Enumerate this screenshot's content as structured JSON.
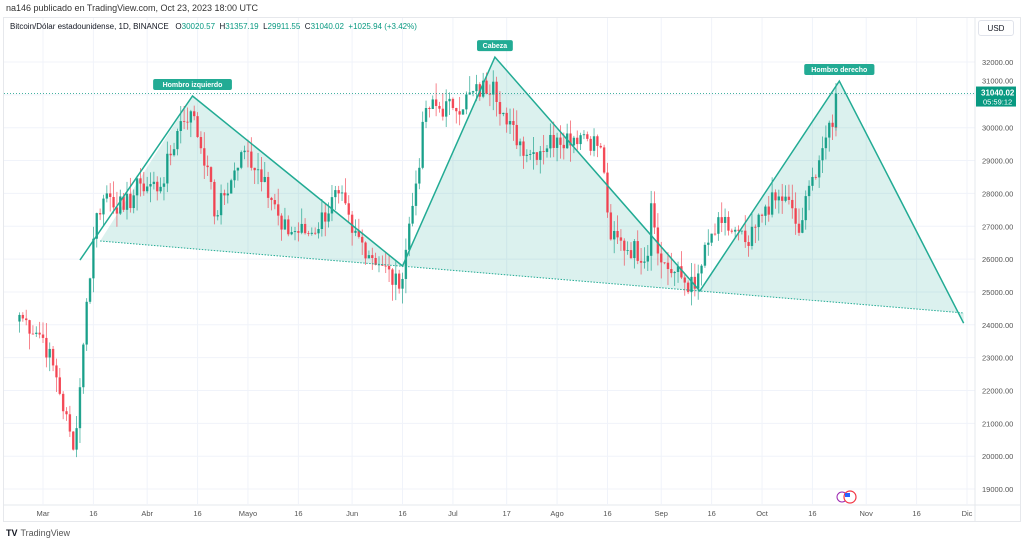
{
  "header": {
    "published": "na146 publicado en TradingView.com, Oct 23, 2023 18:00 UTC",
    "symbol": "Bitcoin/Dólar estadounidense, 1D, BINANCE",
    "open_label": "O",
    "open": "30020.57",
    "high_label": "H",
    "high": "31357.19",
    "low_label": "L",
    "low": "29911.55",
    "close_label": "C",
    "close": "31040.02",
    "change": "+1025.94 (+3.42%)"
  },
  "price_axis": {
    "currency": "USD",
    "last_price": "31040.02",
    "countdown": "05:59:12"
  },
  "footer": {
    "brand": "TradingView",
    "logo_icon": "tradingview-logo-icon"
  },
  "colors": {
    "up": "#089981",
    "down": "#f23645",
    "pattern": "#22ab94",
    "fill": "#22ab94"
  },
  "chart_data": {
    "type": "candlestick",
    "title": "Bitcoin/Dólar estadounidense, 1D, BINANCE",
    "ylim": [
      18600,
      33000
    ],
    "y_ticks": [
      19000,
      20000,
      21000,
      22000,
      23000,
      24000,
      25000,
      26000,
      27000,
      28000,
      29000,
      30000,
      31000,
      32000
    ],
    "x_ticks": [
      {
        "label": "Mar",
        "day": 0
      },
      {
        "label": "16",
        "day": 15
      },
      {
        "label": "Abr",
        "day": 31
      },
      {
        "label": "16",
        "day": 46
      },
      {
        "label": "Mayo",
        "day": 61
      },
      {
        "label": "16",
        "day": 76
      },
      {
        "label": "Jun",
        "day": 92
      },
      {
        "label": "16",
        "day": 107
      },
      {
        "label": "Jul",
        "day": 122
      },
      {
        "label": "17",
        "day": 138
      },
      {
        "label": "Ago",
        "day": 153
      },
      {
        "label": "16",
        "day": 168
      },
      {
        "label": "Sep",
        "day": 184
      },
      {
        "label": "16",
        "day": 199
      },
      {
        "label": "Oct",
        "day": 214
      },
      {
        "label": "16",
        "day": 229
      },
      {
        "label": "Nov",
        "day": 245
      },
      {
        "label": "16",
        "day": 260
      },
      {
        "label": "Dic",
        "day": 275
      }
    ],
    "x_unit": "days since 2023-03-01",
    "close_anchors": [
      [
        -7,
        24300
      ],
      [
        0,
        23600
      ],
      [
        4,
        22400
      ],
      [
        9,
        20200
      ],
      [
        11,
        22100
      ],
      [
        13,
        24700
      ],
      [
        16,
        27400
      ],
      [
        19,
        28000
      ],
      [
        24,
        27500
      ],
      [
        29,
        28300
      ],
      [
        35,
        28200
      ],
      [
        41,
        30200
      ],
      [
        44,
        30500
      ],
      [
        49,
        28800
      ],
      [
        51,
        27300
      ],
      [
        56,
        28400
      ],
      [
        60,
        29300
      ],
      [
        66,
        28500
      ],
      [
        71,
        26900
      ],
      [
        80,
        26800
      ],
      [
        88,
        28000
      ],
      [
        92,
        26800
      ],
      [
        101,
        25800
      ],
      [
        106,
        25100
      ],
      [
        111,
        28300
      ],
      [
        114,
        30600
      ],
      [
        122,
        30600
      ],
      [
        134,
        31400
      ],
      [
        138,
        30100
      ],
      [
        145,
        29200
      ],
      [
        153,
        29700
      ],
      [
        161,
        29800
      ],
      [
        166,
        29400
      ],
      [
        169,
        26600
      ],
      [
        180,
        26100
      ],
      [
        181,
        27700
      ],
      [
        184,
        25900
      ],
      [
        194,
        25100
      ],
      [
        198,
        26500
      ],
      [
        202,
        27100
      ],
      [
        210,
        26400
      ],
      [
        215,
        27600
      ],
      [
        221,
        27900
      ],
      [
        225,
        26800
      ],
      [
        229,
        28500
      ],
      [
        233,
        29700
      ],
      [
        236,
        30020.57
      ]
    ],
    "last_candle": {
      "day": 236,
      "open": 30020.57,
      "high": 31357.19,
      "low": 29911.55,
      "close": 31040.02
    },
    "pattern": {
      "name": "Hombro-Cabeza-Hombro",
      "labels": [
        "Hombro izquierdo",
        "Cabeza",
        "Hombro derecho"
      ],
      "points": [
        [
          11,
          25970
        ],
        [
          44.5,
          30965
        ],
        [
          107,
          25790
        ],
        [
          134.5,
          32150
        ],
        [
          195.5,
          25030
        ],
        [
          237,
          31420
        ],
        [
          274,
          24050
        ]
      ],
      "neckline": [
        [
          17,
          26550
        ],
        [
          274,
          24360
        ]
      ],
      "label_points": [
        1,
        3,
        5
      ]
    }
  }
}
